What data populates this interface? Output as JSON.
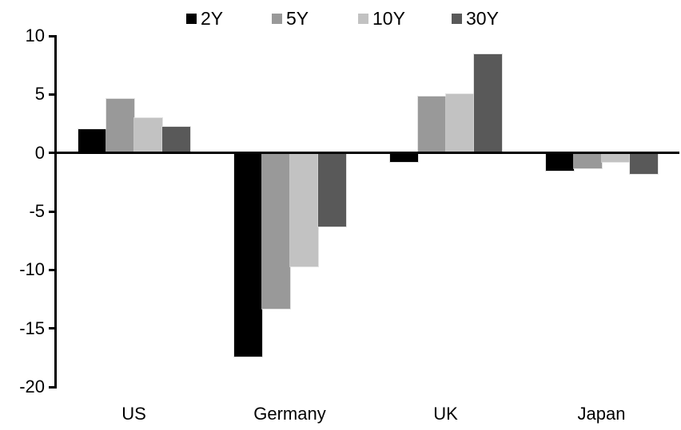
{
  "chart_data": {
    "type": "bar",
    "title": "",
    "categories": [
      "US",
      "Germany",
      "UK",
      "Japan"
    ],
    "series": [
      {
        "name": "2Y",
        "color": "#000000",
        "values": [
          2.0,
          -17.4,
          -0.8,
          -1.5
        ]
      },
      {
        "name": "5Y",
        "color": "#999999",
        "values": [
          4.6,
          -13.3,
          4.8,
          -1.3
        ]
      },
      {
        "name": "10Y",
        "color": "#c2c2c2",
        "values": [
          3.0,
          -9.7,
          5.0,
          -0.8
        ]
      },
      {
        "name": "30Y",
        "color": "#595959",
        "values": [
          2.2,
          -6.3,
          8.4,
          -1.8
        ]
      }
    ],
    "xlabel": "",
    "ylabel": "",
    "ylim": [
      -20,
      10
    ],
    "yticks": [
      10,
      5,
      0,
      -5,
      -10,
      -15,
      -20
    ],
    "grid": false,
    "legend_position": "top",
    "background_color": "#ffffff",
    "axis_color": "#000000"
  }
}
